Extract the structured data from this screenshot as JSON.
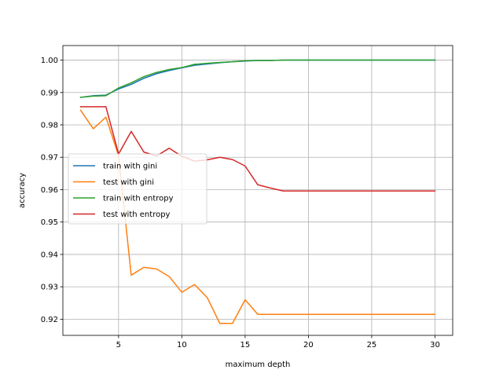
{
  "chart_data": {
    "type": "line",
    "title": "",
    "xlabel": "maximum depth",
    "ylabel": "accuracy",
    "xlim": [
      0.6,
      31.4
    ],
    "ylim": [
      0.915,
      1.0045
    ],
    "xticks": [
      5,
      10,
      15,
      20,
      25,
      30
    ],
    "yticks": [
      0.92,
      0.93,
      0.94,
      0.95,
      0.96,
      0.97,
      0.98,
      0.99,
      1.0
    ],
    "ytick_labels": [
      "0.92",
      "0.93",
      "0.94",
      "0.95",
      "0.96",
      "0.97",
      "0.98",
      "0.99",
      "1.00"
    ],
    "grid": true,
    "legend_position": "center-left",
    "x": [
      2,
      3,
      4,
      5,
      6,
      7,
      8,
      9,
      10,
      11,
      12,
      13,
      14,
      15,
      16,
      17,
      18,
      19,
      20,
      21,
      22,
      23,
      24,
      25,
      26,
      27,
      28,
      29,
      30
    ],
    "series": [
      {
        "name": "train with gini",
        "color": "#1f77b4",
        "values": [
          0.9885,
          0.989,
          0.9892,
          0.9911,
          0.9925,
          0.9944,
          0.9958,
          0.9968,
          0.9976,
          0.9984,
          0.9988,
          0.9992,
          0.9995,
          0.9997,
          0.9999,
          0.9999,
          1.0,
          1.0,
          1.0,
          1.0,
          1.0,
          1.0,
          1.0,
          1.0,
          1.0,
          1.0,
          1.0,
          1.0,
          1.0
        ]
      },
      {
        "name": "test with gini",
        "color": "#ff7f0e",
        "values": [
          0.9845,
          0.9788,
          0.9824,
          0.9705,
          0.9336,
          0.936,
          0.9355,
          0.9332,
          0.9283,
          0.9307,
          0.9267,
          0.9187,
          0.9187,
          0.926,
          0.9215,
          0.9215,
          0.9215,
          0.9215,
          0.9215,
          0.9215,
          0.9215,
          0.9215,
          0.9215,
          0.9215,
          0.9215,
          0.9215,
          0.9215,
          0.9215,
          0.9215
        ]
      },
      {
        "name": "train with entropy",
        "color": "#2ca02c",
        "values": [
          0.9885,
          0.9889,
          0.989,
          0.9914,
          0.993,
          0.9949,
          0.9962,
          0.9971,
          0.9977,
          0.9987,
          0.999,
          0.9993,
          0.9995,
          0.9998,
          0.9999,
          0.9999,
          1.0,
          1.0,
          1.0,
          1.0,
          1.0,
          1.0,
          1.0,
          1.0,
          1.0,
          1.0,
          1.0,
          1.0,
          1.0
        ]
      },
      {
        "name": "test with entropy",
        "color": "#d62728",
        "values": [
          0.9856,
          0.9856,
          0.9856,
          0.971,
          0.978,
          0.9716,
          0.9704,
          0.9728,
          0.9703,
          0.9688,
          0.9692,
          0.97,
          0.9693,
          0.9673,
          0.9615,
          0.9605,
          0.9596,
          0.9596,
          0.9596,
          0.9596,
          0.9596,
          0.9596,
          0.9596,
          0.9596,
          0.9596,
          0.9596,
          0.9596,
          0.9596,
          0.9596
        ]
      }
    ]
  }
}
